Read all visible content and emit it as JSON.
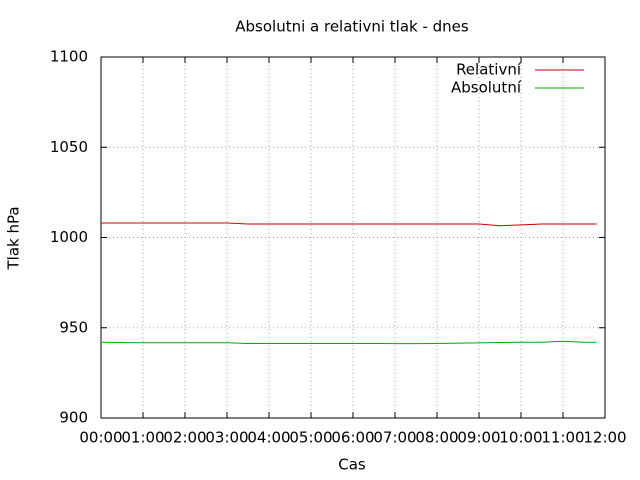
{
  "chart_data": {
    "type": "line",
    "title": "Absolutni a relativni tlak - dnes",
    "x_label": "Cas",
    "y_label": "Tlak hPa",
    "x": [
      0,
      0.5,
      1,
      1.5,
      2,
      2.5,
      3,
      3.5,
      4,
      4.5,
      5,
      5.5,
      6,
      6.5,
      7,
      7.5,
      8,
      8.5,
      9,
      9.5,
      10,
      10.5,
      11,
      11.5,
      11.8
    ],
    "series": [
      {
        "name": "Relativní",
        "color": "#cc0000",
        "values": [
          1008,
          1008,
          1008,
          1008,
          1008,
          1008,
          1008,
          1007.5,
          1007.5,
          1007.5,
          1007.5,
          1007.5,
          1007.5,
          1007.5,
          1007.5,
          1007.5,
          1007.5,
          1007.5,
          1007.5,
          1006.5,
          1007,
          1007.5,
          1007.5,
          1007.5,
          1007.5
        ]
      },
      {
        "name": "Absolutní",
        "color": "#00aa00",
        "values": [
          942,
          941.8,
          941.7,
          941.7,
          941.7,
          941.7,
          941.7,
          941.3,
          941.3,
          941.3,
          941.3,
          941.3,
          941.3,
          941.3,
          941.2,
          941.2,
          941.3,
          941.5,
          941.6,
          941.8,
          942,
          942,
          942.5,
          942,
          942
        ]
      }
    ],
    "xlim": [
      0,
      12
    ],
    "xticks": [
      {
        "value": 0,
        "label": "00:00"
      },
      {
        "value": 1,
        "label": "01:00"
      },
      {
        "value": 2,
        "label": "02:00"
      },
      {
        "value": 3,
        "label": "03:00"
      },
      {
        "value": 4,
        "label": "04:00"
      },
      {
        "value": 5,
        "label": "05:00"
      },
      {
        "value": 6,
        "label": "06:00"
      },
      {
        "value": 7,
        "label": "07:00"
      },
      {
        "value": 8,
        "label": "08:00"
      },
      {
        "value": 9,
        "label": "09:00"
      },
      {
        "value": 10,
        "label": "10:00"
      },
      {
        "value": 11,
        "label": "11:00"
      },
      {
        "value": 12,
        "label": "12:00"
      }
    ],
    "ylim": [
      900,
      1100
    ],
    "yticks": [
      900,
      950,
      1000,
      1050,
      1100
    ],
    "grid": true,
    "legend": "top-right"
  }
}
